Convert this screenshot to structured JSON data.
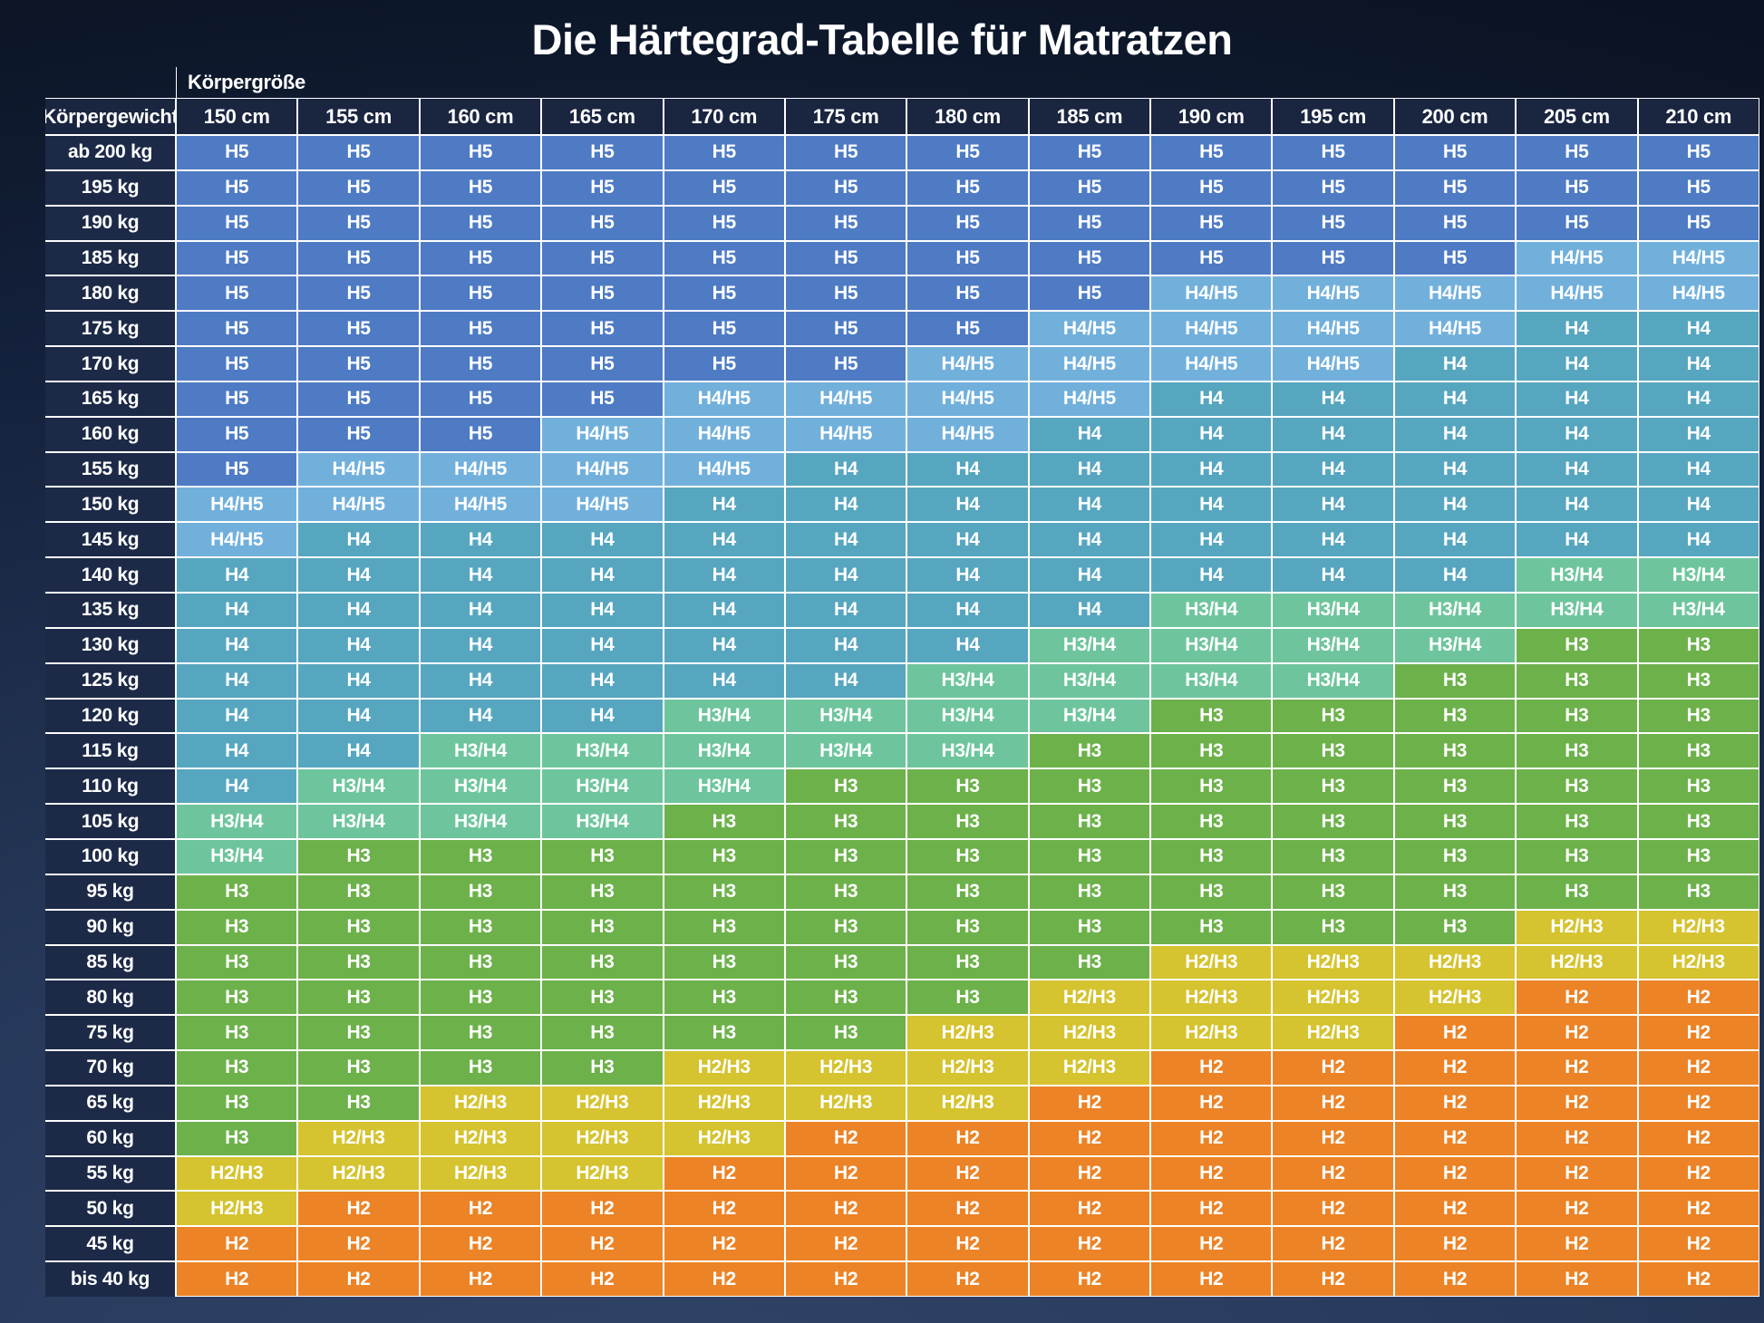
{
  "title": "Die Härtegrad-Tabelle für Matratzen",
  "chart_data": {
    "type": "heatmap",
    "x_axis_label": "Körpergröße",
    "y_axis_label": "Körpergewicht",
    "x_categories": [
      "150 cm",
      "155 cm",
      "160 cm",
      "165 cm",
      "170 cm",
      "175 cm",
      "180 cm",
      "185 cm",
      "190 cm",
      "195 cm",
      "200 cm",
      "205 cm",
      "210 cm"
    ],
    "y_categories": [
      "ab 200 kg",
      "195 kg",
      "190 kg",
      "185 kg",
      "180 kg",
      "175 kg",
      "170 kg",
      "165 kg",
      "160 kg",
      "155 kg",
      "150 kg",
      "145 kg",
      "140 kg",
      "135 kg",
      "130 kg",
      "125 kg",
      "120 kg",
      "115 kg",
      "110 kg",
      "105 kg",
      "100 kg",
      "95 kg",
      "90 kg",
      "85 kg",
      "80 kg",
      "75 kg",
      "70 kg",
      "65 kg",
      "60 kg",
      "55 kg",
      "50 kg",
      "45 kg",
      "bis 40 kg"
    ],
    "values": [
      [
        "H5",
        "H5",
        "H5",
        "H5",
        "H5",
        "H5",
        "H5",
        "H5",
        "H5",
        "H5",
        "H5",
        "H5",
        "H5"
      ],
      [
        "H5",
        "H5",
        "H5",
        "H5",
        "H5",
        "H5",
        "H5",
        "H5",
        "H5",
        "H5",
        "H5",
        "H5",
        "H5"
      ],
      [
        "H5",
        "H5",
        "H5",
        "H5",
        "H5",
        "H5",
        "H5",
        "H5",
        "H5",
        "H5",
        "H5",
        "H5",
        "H5"
      ],
      [
        "H5",
        "H5",
        "H5",
        "H5",
        "H5",
        "H5",
        "H5",
        "H5",
        "H5",
        "H5",
        "H5",
        "H4/H5",
        "H4/H5"
      ],
      [
        "H5",
        "H5",
        "H5",
        "H5",
        "H5",
        "H5",
        "H5",
        "H5",
        "H4/H5",
        "H4/H5",
        "H4/H5",
        "H4/H5",
        "H4/H5"
      ],
      [
        "H5",
        "H5",
        "H5",
        "H5",
        "H5",
        "H5",
        "H5",
        "H4/H5",
        "H4/H5",
        "H4/H5",
        "H4/H5",
        "H4",
        "H4"
      ],
      [
        "H5",
        "H5",
        "H5",
        "H5",
        "H5",
        "H5",
        "H4/H5",
        "H4/H5",
        "H4/H5",
        "H4/H5",
        "H4",
        "H4",
        "H4"
      ],
      [
        "H5",
        "H5",
        "H5",
        "H5",
        "H4/H5",
        "H4/H5",
        "H4/H5",
        "H4/H5",
        "H4",
        "H4",
        "H4",
        "H4",
        "H4"
      ],
      [
        "H5",
        "H5",
        "H5",
        "H4/H5",
        "H4/H5",
        "H4/H5",
        "H4/H5",
        "H4",
        "H4",
        "H4",
        "H4",
        "H4",
        "H4"
      ],
      [
        "H5",
        "H4/H5",
        "H4/H5",
        "H4/H5",
        "H4/H5",
        "H4",
        "H4",
        "H4",
        "H4",
        "H4",
        "H4",
        "H4",
        "H4"
      ],
      [
        "H4/H5",
        "H4/H5",
        "H4/H5",
        "H4/H5",
        "H4",
        "H4",
        "H4",
        "H4",
        "H4",
        "H4",
        "H4",
        "H4",
        "H4"
      ],
      [
        "H4/H5",
        "H4",
        "H4",
        "H4",
        "H4",
        "H4",
        "H4",
        "H4",
        "H4",
        "H4",
        "H4",
        "H4",
        "H4"
      ],
      [
        "H4",
        "H4",
        "H4",
        "H4",
        "H4",
        "H4",
        "H4",
        "H4",
        "H4",
        "H4",
        "H4",
        "H3/H4",
        "H3/H4"
      ],
      [
        "H4",
        "H4",
        "H4",
        "H4",
        "H4",
        "H4",
        "H4",
        "H4",
        "H3/H4",
        "H3/H4",
        "H3/H4",
        "H3/H4",
        "H3/H4"
      ],
      [
        "H4",
        "H4",
        "H4",
        "H4",
        "H4",
        "H4",
        "H4",
        "H3/H4",
        "H3/H4",
        "H3/H4",
        "H3/H4",
        "H3",
        "H3"
      ],
      [
        "H4",
        "H4",
        "H4",
        "H4",
        "H4",
        "H4",
        "H3/H4",
        "H3/H4",
        "H3/H4",
        "H3/H4",
        "H3",
        "H3",
        "H3"
      ],
      [
        "H4",
        "H4",
        "H4",
        "H4",
        "H3/H4",
        "H3/H4",
        "H3/H4",
        "H3/H4",
        "H3",
        "H3",
        "H3",
        "H3",
        "H3"
      ],
      [
        "H4",
        "H4",
        "H3/H4",
        "H3/H4",
        "H3/H4",
        "H3/H4",
        "H3/H4",
        "H3",
        "H3",
        "H3",
        "H3",
        "H3",
        "H3"
      ],
      [
        "H4",
        "H3/H4",
        "H3/H4",
        "H3/H4",
        "H3/H4",
        "H3",
        "H3",
        "H3",
        "H3",
        "H3",
        "H3",
        "H3",
        "H3"
      ],
      [
        "H3/H4",
        "H3/H4",
        "H3/H4",
        "H3/H4",
        "H3",
        "H3",
        "H3",
        "H3",
        "H3",
        "H3",
        "H3",
        "H3",
        "H3"
      ],
      [
        "H3/H4",
        "H3",
        "H3",
        "H3",
        "H3",
        "H3",
        "H3",
        "H3",
        "H3",
        "H3",
        "H3",
        "H3",
        "H3"
      ],
      [
        "H3",
        "H3",
        "H3",
        "H3",
        "H3",
        "H3",
        "H3",
        "H3",
        "H3",
        "H3",
        "H3",
        "H3",
        "H3"
      ],
      [
        "H3",
        "H3",
        "H3",
        "H3",
        "H3",
        "H3",
        "H3",
        "H3",
        "H3",
        "H3",
        "H3",
        "H2/H3",
        "H2/H3"
      ],
      [
        "H3",
        "H3",
        "H3",
        "H3",
        "H3",
        "H3",
        "H3",
        "H3",
        "H2/H3",
        "H2/H3",
        "H2/H3",
        "H2/H3",
        "H2/H3"
      ],
      [
        "H3",
        "H3",
        "H3",
        "H3",
        "H3",
        "H3",
        "H3",
        "H2/H3",
        "H2/H3",
        "H2/H3",
        "H2/H3",
        "H2",
        "H2"
      ],
      [
        "H3",
        "H3",
        "H3",
        "H3",
        "H3",
        "H3",
        "H2/H3",
        "H2/H3",
        "H2/H3",
        "H2/H3",
        "H2",
        "H2",
        "H2"
      ],
      [
        "H3",
        "H3",
        "H3",
        "H3",
        "H2/H3",
        "H2/H3",
        "H2/H3",
        "H2/H3",
        "H2",
        "H2",
        "H2",
        "H2",
        "H2"
      ],
      [
        "H3",
        "H3",
        "H2/H3",
        "H2/H3",
        "H2/H3",
        "H2/H3",
        "H2/H3",
        "H2",
        "H2",
        "H2",
        "H2",
        "H2",
        "H2"
      ],
      [
        "H3",
        "H2/H3",
        "H2/H3",
        "H2/H3",
        "H2/H3",
        "H2",
        "H2",
        "H2",
        "H2",
        "H2",
        "H2",
        "H2",
        "H2"
      ],
      [
        "H2/H3",
        "H2/H3",
        "H2/H3",
        "H2/H3",
        "H2",
        "H2",
        "H2",
        "H2",
        "H2",
        "H2",
        "H2",
        "H2",
        "H2"
      ],
      [
        "H2/H3",
        "H2",
        "H2",
        "H2",
        "H2",
        "H2",
        "H2",
        "H2",
        "H2",
        "H2",
        "H2",
        "H2",
        "H2"
      ],
      [
        "H2",
        "H2",
        "H2",
        "H2",
        "H2",
        "H2",
        "H2",
        "H2",
        "H2",
        "H2",
        "H2",
        "H2",
        "H2"
      ],
      [
        "H2",
        "H2",
        "H2",
        "H2",
        "H2",
        "H2",
        "H2",
        "H2",
        "H2",
        "H2",
        "H2",
        "H2",
        "H2"
      ]
    ],
    "legend": {
      "H5": "#4e7bc4",
      "H4/H5": "#72b0dc",
      "H4": "#57a6bf",
      "H3/H4": "#6ec59d",
      "H3": "#6db14b",
      "H2/H3": "#d5c32f",
      "H2": "#ec8326"
    },
    "grid": true,
    "grid_color": "#ffffff",
    "header_bg": "#1a2540",
    "row_label_bg": "#1c2a47",
    "text_color": "#ffffff"
  }
}
